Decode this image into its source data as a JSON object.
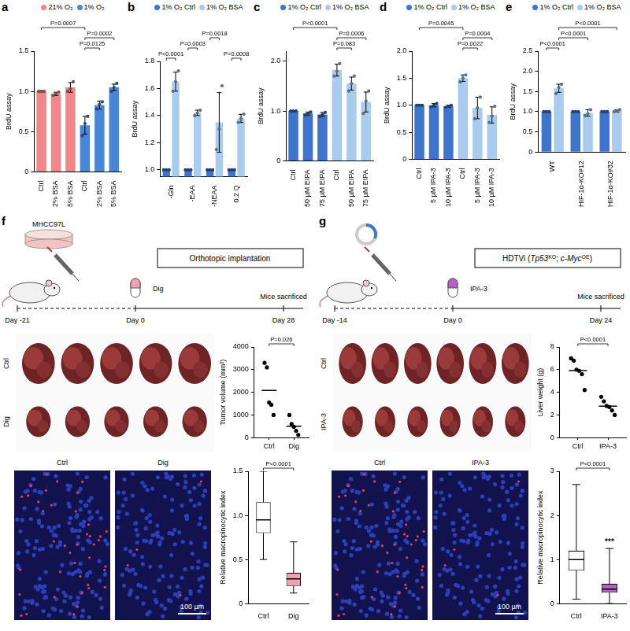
{
  "chart_data": [
    {
      "type": "bar",
      "y_label": "BrdU assay",
      "legend": "top",
      "categories": [
        "Ctrl",
        "2% BSA",
        "5% BSA",
        "Ctrl",
        "2% BSA",
        "5% BSA"
      ],
      "series": [
        {
          "name": "21% O₂",
          "color": "#f0878a",
          "values": [
            1,
            0.97,
            1.05,
            null,
            null,
            null
          ],
          "errors": [
            0.01,
            0.02,
            0.06,
            null,
            null,
            null
          ],
          "points": [
            [
              1,
              1,
              1
            ],
            [
              0.95,
              0.97,
              0.99
            ],
            [
              1.0,
              1.03,
              1.12
            ],
            null,
            null,
            null
          ]
        },
        {
          "name": "1% O₂",
          "color": "#4a86d8",
          "values": [
            null,
            null,
            null,
            0.58,
            0.83,
            1.05
          ],
          "errors": [
            null,
            null,
            null,
            0.11,
            0.05,
            0.04
          ],
          "points": [
            null,
            null,
            null,
            [
              0.45,
              0.6,
              0.69
            ],
            [
              0.78,
              0.84,
              0.87
            ],
            [
              1.0,
              1.05,
              1.1
            ]
          ]
        }
      ],
      "ylim": [
        0,
        1.5
      ],
      "yticks": [
        0,
        0.5,
        {
          "value": 1,
          "label": "1.0"
        },
        1.5
      ],
      "brackets": [
        {
          "from": [
            0,
            0
          ],
          "to": [
            1,
            3
          ],
          "label": "P=0.0007"
        },
        {
          "from": [
            1,
            3
          ],
          "to": [
            1,
            5
          ],
          "label": "P=0.0002"
        },
        {
          "from": [
            1,
            3
          ],
          "to": [
            1,
            4
          ],
          "label": "P=0.0125"
        }
      ]
    },
    {
      "type": "bar",
      "y_label": "BrdU assay",
      "legend": "top",
      "categories": [
        "-Gln",
        "-EAA",
        "-NEAA",
        "0.2 Q"
      ],
      "series": [
        {
          "name": "1% O₂ Ctrl",
          "color": "#3f74cc",
          "values": [
            1,
            1,
            1,
            1
          ],
          "errors": [
            0,
            0,
            0,
            0
          ],
          "points": [
            [
              1,
              1,
              1
            ],
            [
              1,
              1,
              1
            ],
            [
              1,
              1,
              1
            ],
            [
              1,
              1,
              1
            ]
          ]
        },
        {
          "name": "1% O₂ BSA",
          "color": "#a8cbee",
          "values": [
            1.65,
            1.42,
            1.35,
            1.38
          ],
          "errors": [
            0.07,
            0.02,
            0.22,
            0.03
          ],
          "points": [
            [
              1.58,
              1.65,
              1.73
            ],
            [
              1.4,
              1.42,
              1.44
            ],
            [
              1.15,
              1.3,
              1.62
            ],
            [
              1.35,
              1.38,
              1.41
            ]
          ]
        }
      ],
      "ylim": [
        0.95,
        1.8
      ],
      "yticks": [
        {
          "value": 1,
          "label": "1.0"
        },
        1.2,
        1.4,
        1.6,
        1.8
      ],
      "brackets": [
        {
          "from": [
            0,
            0
          ],
          "to": [
            1,
            0
          ],
          "label": "P<0.0001"
        },
        {
          "from": [
            0,
            1
          ],
          "to": [
            1,
            1
          ],
          "label": "P=0.0003"
        },
        {
          "from": [
            0,
            2
          ],
          "to": [
            1,
            2
          ],
          "label": "P=0.0018"
        },
        {
          "from": [
            0,
            3
          ],
          "to": [
            1,
            3
          ],
          "label": "P=0.0008"
        }
      ]
    },
    {
      "type": "bar",
      "y_label": "BrdU assay",
      "legend": "top",
      "categories": [
        "Ctrl",
        "50 µM EIPA",
        "75 µM EIPA",
        "Ctrl",
        "50 µM EIPA",
        "75 µM EIPA"
      ],
      "series": [
        {
          "name": "1% O₂ Ctrl",
          "color": "#3f74cc",
          "values": [
            1,
            0.95,
            0.93,
            null,
            null,
            null
          ],
          "errors": [
            0.01,
            0.03,
            0.04,
            null,
            null,
            null
          ],
          "points": [
            [
              1,
              1,
              1
            ],
            [
              0.92,
              0.95,
              0.98
            ],
            [
              0.89,
              0.93,
              0.97
            ],
            null,
            null,
            null
          ]
        },
        {
          "name": "1% O₂ BSA",
          "color": "#a8cbee",
          "values": [
            null,
            null,
            null,
            1.82,
            1.55,
            1.18
          ],
          "errors": [
            null,
            null,
            null,
            0.12,
            0.13,
            0.2
          ],
          "points": [
            null,
            null,
            null,
            [
              1.7,
              1.8,
              1.95
            ],
            [
              1.4,
              1.55,
              1.7
            ],
            [
              0.95,
              1.2,
              1.4
            ]
          ]
        }
      ],
      "ylim": [
        0,
        2.2
      ],
      "yticks": [
        0,
        {
          "value": 1,
          "label": "1.0"
        },
        {
          "value": 2,
          "label": "2.0"
        }
      ],
      "brackets": [
        {
          "from": [
            0,
            0
          ],
          "to": [
            1,
            3
          ],
          "label": "P<0.0001"
        },
        {
          "from": [
            1,
            3
          ],
          "to": [
            1,
            5
          ],
          "label": "P=0.0006"
        },
        {
          "from": [
            1,
            3
          ],
          "to": [
            1,
            4
          ],
          "label": "P=0.083"
        }
      ]
    },
    {
      "type": "bar",
      "y_label": "BrdU assay",
      "legend": "top",
      "categories": [
        "Ctrl",
        "5 µM IPA-3",
        "10 µM IPA-3",
        "Ctrl",
        "5 µM IPA-3",
        "10 µM IPA-3"
      ],
      "series": [
        {
          "name": "1% O₂ Ctrl",
          "color": "#3f74cc",
          "values": [
            1,
            1.0,
            0.98,
            null,
            null,
            null
          ],
          "errors": [
            0.01,
            0.03,
            0.02,
            null,
            null,
            null
          ],
          "points": [
            [
              1,
              1,
              1
            ],
            [
              0.97,
              1.0,
              1.03
            ],
            [
              0.96,
              0.98,
              1.0
            ],
            null,
            null,
            null
          ]
        },
        {
          "name": "1% O₂ BSA",
          "color": "#a8cbee",
          "values": [
            null,
            null,
            null,
            1.5,
            0.95,
            0.82
          ],
          "errors": [
            null,
            null,
            null,
            0.06,
            0.2,
            0.15
          ],
          "points": [
            null,
            null,
            null,
            [
              1.43,
              1.5,
              1.56
            ],
            [
              0.75,
              0.95,
              1.15
            ],
            [
              0.68,
              0.8,
              0.98
            ]
          ]
        }
      ],
      "ylim": [
        0,
        2.0
      ],
      "yticks": [
        0,
        0.5,
        {
          "value": 1,
          "label": "1.0"
        },
        1.5,
        {
          "value": 2,
          "label": "2.0"
        }
      ],
      "brackets": [
        {
          "from": [
            0,
            0
          ],
          "to": [
            1,
            3
          ],
          "label": "P=0.0045"
        },
        {
          "from": [
            1,
            3
          ],
          "to": [
            1,
            5
          ],
          "label": "P=0.0004"
        },
        {
          "from": [
            1,
            3
          ],
          "to": [
            1,
            4
          ],
          "label": "P=0.0022"
        }
      ]
    },
    {
      "type": "bar",
      "y_label": "BrdU assay",
      "legend": "top",
      "categories": [
        "WT",
        "HIF-1α-KO#12",
        "HIF-1α-KO#32"
      ],
      "series": [
        {
          "name": "1% O₂ Ctrl",
          "color": "#3f74cc",
          "values": [
            1,
            1,
            1
          ],
          "errors": [
            0.01,
            0.01,
            0.01
          ],
          "points": [
            [
              1,
              1,
              1
            ],
            [
              1,
              1,
              1
            ],
            [
              1,
              1,
              1
            ]
          ]
        },
        {
          "name": "1% O₂ BSA",
          "color": "#a8cbee",
          "values": [
            1.58,
            0.97,
            1.02
          ],
          "errors": [
            0.1,
            0.08,
            0.03
          ],
          "points": [
            [
              1.45,
              1.6,
              1.68
            ],
            [
              0.9,
              0.95,
              1.05
            ],
            [
              1.0,
              1.02,
              1.05
            ]
          ]
        }
      ],
      "ylim": [
        0,
        2.5
      ],
      "yticks": [
        0,
        0.5,
        {
          "value": 1,
          "label": "1.0"
        },
        1.5,
        {
          "value": 2,
          "label": "2.0"
        },
        2.5
      ],
      "brackets": [
        {
          "from": [
            0,
            0
          ],
          "to": [
            1,
            0
          ],
          "label": "P<0.0001"
        },
        {
          "from": [
            1,
            0
          ],
          "to": [
            1,
            1
          ],
          "label": "P<0.0001"
        },
        {
          "from": [
            1,
            0
          ],
          "to": [
            1,
            2
          ],
          "label": "P<0.0001"
        }
      ]
    },
    {
      "type": "scatter",
      "y_label": "Tumor volume (mm³)",
      "color": "#000000",
      "categories": [
        "Ctrl",
        "Dig"
      ],
      "values": [
        [
          3300,
          3100,
          1550,
          1450,
          1000
        ],
        [
          1000,
          600,
          480,
          300,
          120
        ]
      ],
      "means": [
        2080,
        500
      ],
      "ylim": [
        0,
        4000
      ],
      "yticks": [
        0,
        1000,
        2000,
        3000,
        4000
      ],
      "brackets": [
        {
          "from": 0,
          "to": 1,
          "label": "P=0.026"
        }
      ]
    },
    {
      "type": "box",
      "y_label": "Relative macropinocytic index",
      "categories": [
        "Ctrl",
        "Dig"
      ],
      "colors": [
        "#ffffff",
        "#f2a0b4"
      ],
      "boxes": [
        {
          "min": 0.5,
          "q1": 0.8,
          "median": 0.95,
          "q3": 1.15,
          "max": 1.5
        },
        {
          "min": 0.12,
          "q1": 0.2,
          "median": 0.28,
          "q3": 0.35,
          "max": 0.7
        }
      ],
      "ylim": [
        0,
        1.5
      ],
      "yticks": [
        0,
        0.5,
        {
          "value": 1,
          "label": "1.0"
        },
        1.5
      ],
      "brackets": [
        {
          "from": 0,
          "to": 1,
          "label": "P<0.0001"
        }
      ]
    },
    {
      "type": "scatter",
      "y_label": "Liver weight (g)",
      "color": "#000000",
      "categories": [
        "Ctrl",
        "IPA-3"
      ],
      "values": [
        [
          7.0,
          6.8,
          6.0,
          5.9,
          5.6,
          4.2
        ],
        [
          3.6,
          3.2,
          2.8,
          2.7,
          2.4,
          2.0
        ]
      ],
      "means": [
        5.92,
        2.78
      ],
      "ylim": [
        0,
        8
      ],
      "yticks": [
        0,
        2,
        4,
        6,
        8
      ],
      "brackets": [
        {
          "from": 0,
          "to": 1,
          "label": "P<0.0001"
        }
      ]
    },
    {
      "type": "box",
      "y_label": "Relative macropinocytic index",
      "categories": [
        "Ctrl",
        "IPA-3"
      ],
      "colors": [
        "#ffffff",
        "#b760c9"
      ],
      "boxes": [
        {
          "min": 0.1,
          "q1": 0.75,
          "median": 1.0,
          "q3": 1.2,
          "max": 2.7
        },
        {
          "min": 0.0,
          "q1": 0.25,
          "median": 0.33,
          "q3": 0.45,
          "max": 1.25
        }
      ],
      "ylim": [
        0,
        3
      ],
      "yticks": [
        0,
        1,
        2,
        3
      ],
      "brackets": [
        {
          "from": 0,
          "to": 1,
          "label": "P<0.0001"
        }
      ],
      "annotations": [
        {
          "category": 1,
          "text": "***"
        }
      ]
    }
  ],
  "figure": {
    "panel_labels": [
      "a",
      "b",
      "c",
      "d",
      "e",
      "f",
      "g"
    ],
    "f": {
      "cell_line": "MHCC97L",
      "procedure": [
        {
          "text": "Orthotopic implantation"
        }
      ],
      "drug": "Dig",
      "timeline": [
        "Day -21",
        "Day 0",
        "Day 28"
      ],
      "endpoint": "Mice sacrificed",
      "photo_rows": [
        "Ctrl",
        "Dig"
      ],
      "micrographs": [
        "Ctrl",
        "Dig"
      ],
      "scale_bar": "100 µm"
    },
    "g": {
      "procedure": [
        {
          "text": "HDTVi ("
        },
        {
          "text": "Tp53",
          "italic": true
        },
        {
          "text": "KO",
          "sup": true
        },
        {
          "text": "; "
        },
        {
          "text": "c-Myc",
          "italic": true
        },
        {
          "text": "OE",
          "sup": true
        },
        {
          "text": ")"
        }
      ],
      "drug": "IPA-3",
      "timeline": [
        "Day -14",
        "Day 0",
        "Day 24"
      ],
      "endpoint": "Mice sacrificed",
      "photo_rows": [
        "Ctrl",
        "IPA-3"
      ],
      "micrographs": [
        "Ctrl",
        "IPA-3"
      ],
      "scale_bar": "100 µm"
    }
  }
}
